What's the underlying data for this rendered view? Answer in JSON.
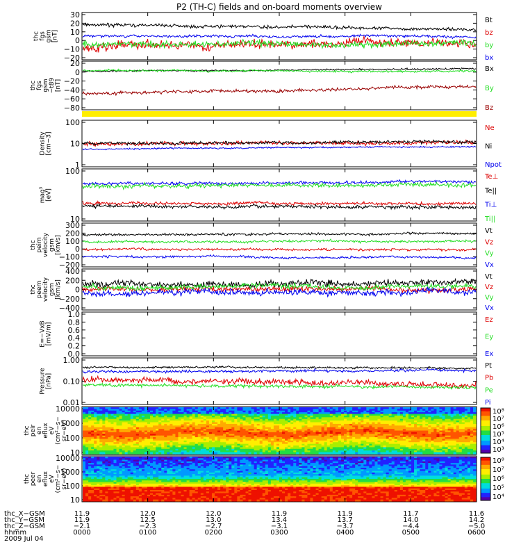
{
  "title": "P2 (TH-C) fields and on-board moments overview",
  "colors": {
    "black": "#000000",
    "red": "#dd0000",
    "green": "#22dd22",
    "blue": "#0000ee",
    "darkred": "#990000",
    "yellow": "#ffee00"
  },
  "chart_data": [
    {
      "type": "line",
      "panel": "fgs-gsm",
      "ylabel": [
        "thc",
        "fgs",
        "gsm",
        "[nT]"
      ],
      "yticks": [
        "30",
        "20",
        "10",
        "0",
        "−10",
        "−20"
      ],
      "ylim": [
        -20,
        30
      ],
      "series": [
        {
          "name": "Bt",
          "color": "black",
          "mean": 18,
          "trend": -5,
          "noise": 1.5
        },
        {
          "name": "bz",
          "color": "red",
          "mean": -8,
          "trend": 6,
          "noise": 4
        },
        {
          "name": "by",
          "color": "green",
          "mean": -4,
          "trend": 0,
          "noise": 3
        },
        {
          "name": "bx",
          "color": "blue",
          "mean": 5,
          "trend": 0,
          "noise": 1.2
        }
      ]
    },
    {
      "type": "line",
      "panel": "fgs-gsm-t89",
      "ylabel": [
        "thc",
        "fgs",
        "gsm",
        "−t89",
        "[nT]"
      ],
      "yticks": [
        "20",
        "0",
        "−20",
        "−40",
        "−60",
        "−80"
      ],
      "ylim": [
        -90,
        20
      ],
      "series": [
        {
          "name": "Bx",
          "color": "black",
          "mean": 0,
          "trend": 6,
          "noise": 1.5
        },
        {
          "name": "By",
          "color": "green",
          "mean": 2,
          "trend": -2,
          "noise": 2
        },
        {
          "name": "Bz",
          "color": "darkred",
          "mean": -55,
          "trend": 18,
          "noise": 3
        }
      ]
    },
    {
      "type": "line",
      "panel": "density",
      "scale": "log",
      "ylabel": [
        "Density",
        "[cm−3]"
      ],
      "yticks": [
        "100",
        "10",
        "1"
      ],
      "ylim": [
        1,
        130
      ],
      "series": [
        {
          "name": "Ne",
          "color": "red",
          "mean": 11,
          "trend": 2,
          "noise": 0.08
        },
        {
          "name": "Ni",
          "color": "black",
          "mean": 12,
          "trend": 2,
          "noise": 0.06
        },
        {
          "name": "Npot",
          "color": "blue",
          "mean": 6,
          "trend": 2,
          "noise": 0.03
        }
      ]
    },
    {
      "type": "line",
      "panel": "temperature",
      "scale": "log",
      "ylabel": [
        "mag³",
        "[eV]"
      ],
      "yticks": [
        "100",
        "10"
      ],
      "ylim": [
        10,
        900
      ],
      "series": [
        {
          "name": "Te⊥",
          "color": "red",
          "mean": 45,
          "trend": -3,
          "noise": 0.05
        },
        {
          "name": "Te||",
          "color": "black",
          "mean": 33,
          "trend": -3,
          "noise": 0.06
        },
        {
          "name": "Ti⊥",
          "color": "blue",
          "mean": 260,
          "trend": 70,
          "noise": 0.05
        },
        {
          "name": "Ti||",
          "color": "green",
          "mean": 220,
          "trend": 30,
          "noise": 0.07
        }
      ]
    },
    {
      "type": "line",
      "panel": "velocity-1",
      "ylabel": [
        "thc",
        "peim",
        "velocity",
        "gsm",
        "[km/s]"
      ],
      "yticks": [
        "300",
        "200",
        "100",
        "0",
        "−100",
        "−200"
      ],
      "ylim": [
        -230,
        310
      ],
      "series": [
        {
          "name": "Vt",
          "color": "black",
          "mean": 180,
          "trend": 15,
          "noise": 12
        },
        {
          "name": "Vz",
          "color": "red",
          "mean": -20,
          "trend": 0,
          "noise": 12
        },
        {
          "name": "Vy",
          "color": "green",
          "mean": 85,
          "trend": 10,
          "noise": 12
        },
        {
          "name": "Vx",
          "color": "blue",
          "mean": -120,
          "trend": -10,
          "noise": 12
        }
      ]
    },
    {
      "type": "line",
      "panel": "velocity-2",
      "ylabel": [
        "thc",
        "peem",
        "velocity",
        "gsm",
        "[km/s]"
      ],
      "yticks": [
        "400",
        "200",
        "0",
        "−200",
        "−400"
      ],
      "ylim": [
        -420,
        420
      ],
      "series": [
        {
          "name": "Vt",
          "color": "black",
          "mean": 140,
          "trend": 10,
          "noise": 60
        },
        {
          "name": "Vz",
          "color": "red",
          "mean": 10,
          "trend": 0,
          "noise": 45
        },
        {
          "name": "Vy",
          "color": "green",
          "mean": 60,
          "trend": 0,
          "noise": 45
        },
        {
          "name": "Vx",
          "color": "blue",
          "mean": -70,
          "trend": -20,
          "noise": 55
        }
      ]
    },
    {
      "type": "line",
      "panel": "efield",
      "ylabel": [
        "E=−VxB",
        "[mV/m]"
      ],
      "yticks": [
        "1.0",
        "0.8",
        "0.6",
        "0.4",
        "0.2",
        "0.0"
      ],
      "ylim": [
        0,
        1
      ],
      "series": [
        {
          "name": "Ez",
          "color": "red"
        },
        {
          "name": "Ey",
          "color": "green"
        },
        {
          "name": "Ex",
          "color": "blue"
        }
      ]
    },
    {
      "type": "line",
      "panel": "pressure",
      "scale": "log",
      "ylabel": [
        "Pressure",
        "[nPa]"
      ],
      "yticks": [
        "1.00",
        "0.10",
        "0.01"
      ],
      "ylim": [
        0.01,
        1.1
      ],
      "series": [
        {
          "name": "Pt",
          "color": "black",
          "mean": 0.5,
          "trend": -0.05,
          "noise": 0.04
        },
        {
          "name": "Pb",
          "color": "red",
          "mean": 0.13,
          "trend": -0.07,
          "noise": 0.12
        },
        {
          "name": "Pe",
          "color": "green",
          "mean": 0.07,
          "trend": -0.02,
          "noise": 0.06
        },
        {
          "name": "Pi",
          "color": "blue",
          "mean": 0.3,
          "trend": 0.05,
          "noise": 0.05
        }
      ]
    },
    {
      "type": "heatmap",
      "panel": "peir-spectrogram",
      "scale": "log",
      "ylabel": [
        "thc",
        "peir",
        "en",
        "eflux",
        "eV",
        "(cm²−s−",
        "sr−eV)"
      ],
      "yticks": [
        "10000",
        "1000",
        "100",
        "10"
      ],
      "ylim": [
        5,
        30000
      ],
      "colorbar_ticks": [
        "10⁸",
        "10⁷",
        "10⁶",
        "10⁵",
        "10⁴",
        "10³"
      ]
    },
    {
      "type": "heatmap",
      "panel": "peer-spectrogram",
      "scale": "log",
      "ylabel": [
        "thc",
        "peer",
        "en",
        "eflux",
        "eV",
        "(cm²−s−",
        "sr−eV)"
      ],
      "yticks": [
        "10000",
        "1000",
        "100",
        "10"
      ],
      "ylim": [
        8,
        30000
      ],
      "colorbar_ticks": [
        "10⁸",
        "10⁷",
        "10⁶",
        "10⁵",
        "10⁴"
      ]
    }
  ],
  "x_axis": {
    "labels": [
      "thc_X−GSM",
      "thc_Y−GSM",
      "thc_Z−GSM",
      "hhmm",
      "2009 Jul 04"
    ],
    "X": [
      "11.9",
      "12.0",
      "12.0",
      "11.9",
      "11.9",
      "11.7",
      "11.6"
    ],
    "Y": [
      "11.9",
      "12.5",
      "13.0",
      "13.4",
      "13.7",
      "14.0",
      "14.2"
    ],
    "Z": [
      "−2.1",
      "−2.3",
      "−2.7",
      "−3.1",
      "−3.7",
      "−4.4",
      "−5.0"
    ],
    "hhmm": [
      "0000",
      "0100",
      "0200",
      "0300",
      "0400",
      "0500",
      "0600"
    ]
  }
}
